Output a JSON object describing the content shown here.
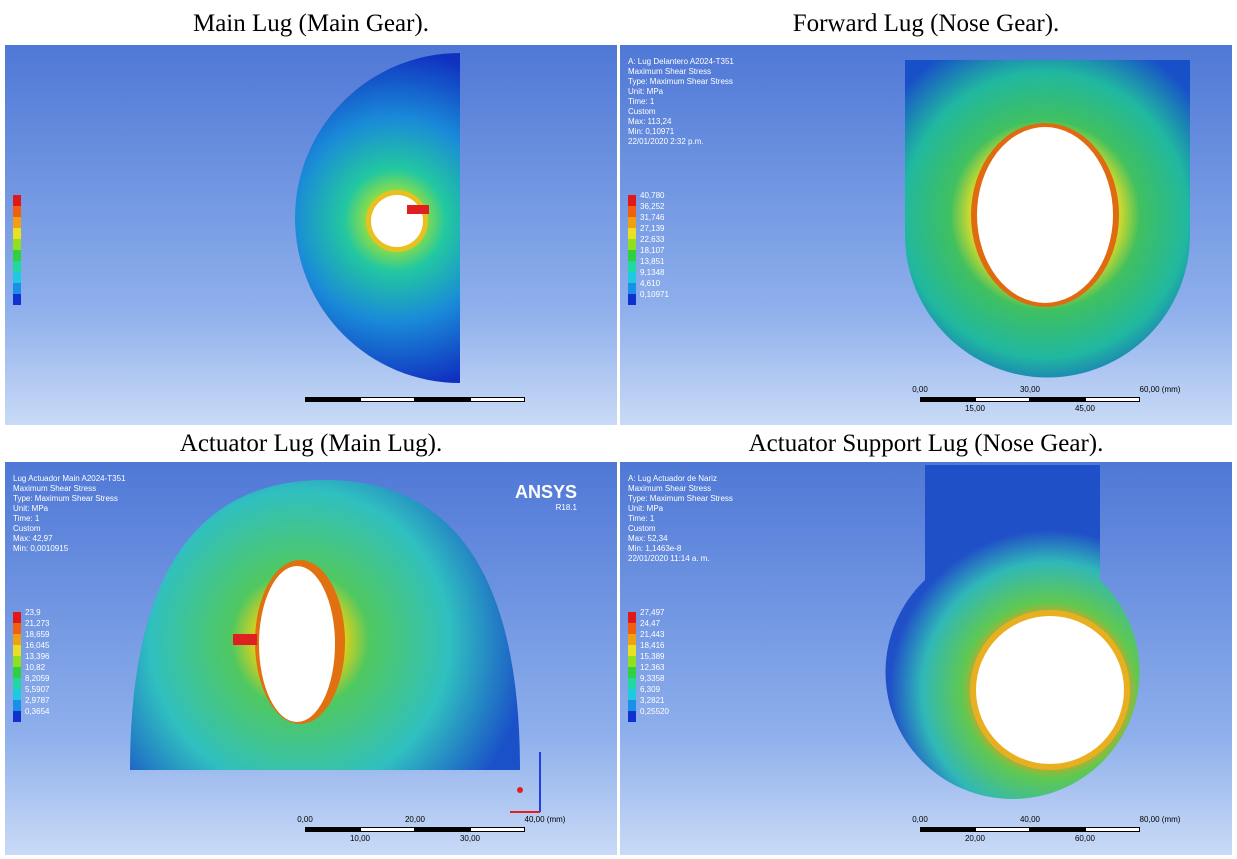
{
  "panels": [
    {
      "title": "Main Lug (Main Gear).",
      "info": [],
      "legend": [],
      "scale": {
        "top": [],
        "bottom": []
      }
    },
    {
      "title": "Forward Lug (Nose Gear).",
      "info": [
        "A: Lug Delantero A2024-T351",
        "Maximum Shear Stress",
        "Type: Maximum Shear Stress",
        "Unit: MPa",
        "Time: 1",
        "Custom",
        "Max: 113,24",
        "Min: 0,10971",
        "22/01/2020 2:32 p.m."
      ],
      "legend": [
        "40,780",
        "36,252",
        "31,746",
        "27,139",
        "22,633",
        "18,107",
        "13,851",
        "9,1348",
        "4,610",
        "0,10971"
      ],
      "scale": {
        "top": [
          "0,00",
          "30,00",
          "60,00 (mm)"
        ],
        "bottom": [
          "15,00",
          "45,00"
        ]
      }
    },
    {
      "title": "Actuator Lug (Main Lug).",
      "info": [
        "Lug Actuador Main A2024-T351",
        "Maximum Shear Stress",
        "Type: Maximum Shear Stress",
        "Unit: MPa",
        "Time: 1",
        "Custom",
        "Max: 42,97",
        "Min: 0,0010915"
      ],
      "legend": [
        "23,9",
        "21,273",
        "18,659",
        "16,045",
        "13,396",
        "10,82",
        "8,2059",
        "5,5907",
        "2,9787",
        "0,3654"
      ],
      "scale": {
        "top": [
          "0,00",
          "20,00",
          "40,00 (mm)"
        ],
        "bottom": [
          "10,00",
          "30,00"
        ]
      },
      "logo": "ANSYS",
      "version": "R18.1"
    },
    {
      "title": "Actuator Support Lug (Nose Gear).",
      "info": [
        "A: Lug Actuador de Nariz",
        "Maximum Shear Stress",
        "Type: Maximum Shear Stress",
        "Unit: MPa",
        "Time: 1",
        "Custom",
        "Max: 52,34",
        "Min: 1,1463e-8",
        "22/01/2020 11:14 a. m."
      ],
      "legend": [
        "27,497",
        "24,47",
        "21,443",
        "18,416",
        "15,389",
        "12,363",
        "9,3358",
        "6,309",
        "3,2821",
        "0,25520"
      ],
      "scale": {
        "top": [
          "0,00",
          "40,00",
          "80,00 (mm)"
        ],
        "bottom": [
          "20,00",
          "60,00"
        ]
      }
    }
  ]
}
